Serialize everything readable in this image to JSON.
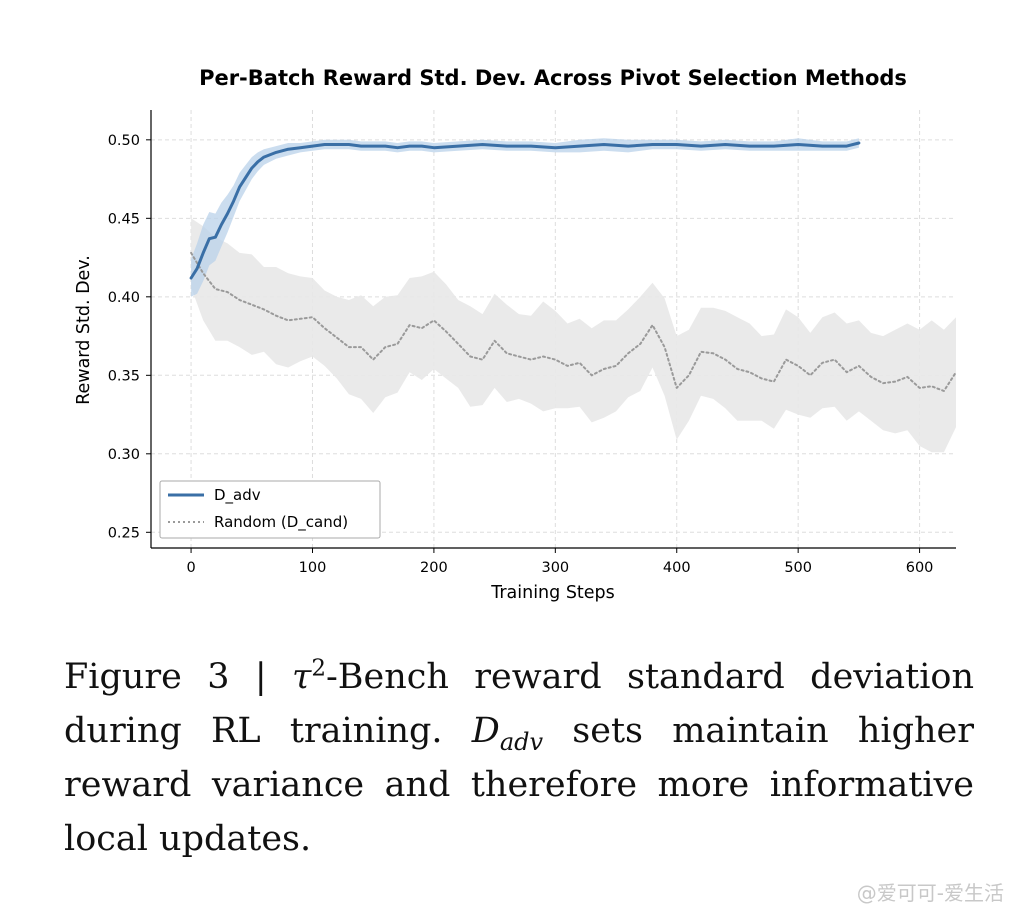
{
  "chart_data": {
    "type": "line",
    "title": "Per-Batch Reward Std. Dev. Across Pivot Selection Methods",
    "xlabel": "Training Steps",
    "ylabel": "Reward Std. Dev.",
    "xlim": [
      -33,
      630
    ],
    "ylim": [
      0.24,
      0.519
    ],
    "xticks": [
      0,
      100,
      200,
      300,
      400,
      500,
      600
    ],
    "yticks": [
      0.25,
      0.3,
      0.35,
      0.4,
      0.45,
      0.5
    ],
    "grid": true,
    "legend_position": "lower-left",
    "series": [
      {
        "name": "D_adv",
        "style": "solid",
        "color": "#3a6fa6",
        "band_color": "#b9d1ea",
        "x": [
          0,
          5,
          10,
          15,
          20,
          25,
          30,
          35,
          40,
          45,
          50,
          55,
          60,
          70,
          80,
          90,
          100,
          110,
          120,
          130,
          140,
          150,
          160,
          170,
          180,
          190,
          200,
          220,
          240,
          260,
          280,
          300,
          320,
          340,
          360,
          380,
          400,
          420,
          440,
          460,
          480,
          500,
          520,
          540,
          550
        ],
        "y": [
          0.412,
          0.418,
          0.428,
          0.437,
          0.438,
          0.446,
          0.453,
          0.461,
          0.47,
          0.476,
          0.482,
          0.486,
          0.489,
          0.492,
          0.494,
          0.495,
          0.496,
          0.497,
          0.497,
          0.497,
          0.496,
          0.496,
          0.496,
          0.495,
          0.496,
          0.496,
          0.495,
          0.496,
          0.497,
          0.496,
          0.496,
          0.495,
          0.496,
          0.497,
          0.496,
          0.497,
          0.497,
          0.496,
          0.497,
          0.496,
          0.496,
          0.497,
          0.496,
          0.496,
          0.498
        ],
        "band": [
          0.012,
          0.016,
          0.018,
          0.017,
          0.015,
          0.014,
          0.012,
          0.01,
          0.009,
          0.008,
          0.007,
          0.006,
          0.005,
          0.004,
          0.004,
          0.003,
          0.003,
          0.003,
          0.003,
          0.003,
          0.003,
          0.003,
          0.003,
          0.003,
          0.003,
          0.003,
          0.003,
          0.003,
          0.003,
          0.003,
          0.003,
          0.003,
          0.004,
          0.004,
          0.004,
          0.003,
          0.003,
          0.003,
          0.003,
          0.003,
          0.003,
          0.004,
          0.003,
          0.003,
          0.003
        ]
      },
      {
        "name": "Random (D_cand)",
        "style": "dotted",
        "color": "#9a9a9a",
        "band_color": "#e8e8e8",
        "x": [
          0,
          10,
          20,
          30,
          40,
          50,
          60,
          70,
          80,
          90,
          100,
          110,
          120,
          130,
          140,
          150,
          160,
          170,
          180,
          190,
          200,
          210,
          220,
          230,
          240,
          250,
          260,
          270,
          280,
          290,
          300,
          310,
          320,
          330,
          340,
          350,
          360,
          370,
          380,
          390,
          400,
          410,
          420,
          430,
          440,
          450,
          460,
          470,
          480,
          490,
          500,
          510,
          520,
          530,
          540,
          550,
          560,
          570,
          580,
          590,
          600,
          610,
          620,
          630
        ],
        "y": [
          0.428,
          0.415,
          0.405,
          0.403,
          0.398,
          0.395,
          0.392,
          0.388,
          0.385,
          0.386,
          0.387,
          0.38,
          0.374,
          0.368,
          0.368,
          0.36,
          0.368,
          0.37,
          0.382,
          0.38,
          0.385,
          0.378,
          0.37,
          0.362,
          0.36,
          0.372,
          0.364,
          0.362,
          0.36,
          0.362,
          0.36,
          0.356,
          0.358,
          0.35,
          0.354,
          0.356,
          0.364,
          0.37,
          0.382,
          0.368,
          0.342,
          0.35,
          0.365,
          0.364,
          0.36,
          0.354,
          0.352,
          0.348,
          0.346,
          0.36,
          0.356,
          0.35,
          0.358,
          0.36,
          0.352,
          0.356,
          0.349,
          0.345,
          0.346,
          0.349,
          0.342,
          0.343,
          0.34,
          0.352
        ],
        "band": [
          0.022,
          0.03,
          0.033,
          0.031,
          0.03,
          0.032,
          0.027,
          0.031,
          0.03,
          0.027,
          0.025,
          0.024,
          0.026,
          0.03,
          0.033,
          0.034,
          0.032,
          0.031,
          0.03,
          0.033,
          0.031,
          0.03,
          0.028,
          0.032,
          0.029,
          0.03,
          0.031,
          0.027,
          0.028,
          0.035,
          0.031,
          0.027,
          0.028,
          0.03,
          0.031,
          0.029,
          0.028,
          0.03,
          0.027,
          0.031,
          0.033,
          0.029,
          0.028,
          0.029,
          0.031,
          0.033,
          0.031,
          0.027,
          0.03,
          0.032,
          0.031,
          0.027,
          0.029,
          0.03,
          0.031,
          0.029,
          0.028,
          0.03,
          0.033,
          0.034,
          0.037,
          0.042,
          0.039,
          0.035
        ]
      }
    ]
  },
  "caption": {
    "prefix": "Figure 3 | ",
    "tau": "τ",
    "sup": "2",
    "part1": "-Bench reward standard deviation during RL training. ",
    "dset": "D",
    "dsub": "adv",
    "part2": " sets maintain higher reward variance and therefore more informative local updates."
  },
  "watermark": "@爱可可-爱生活"
}
